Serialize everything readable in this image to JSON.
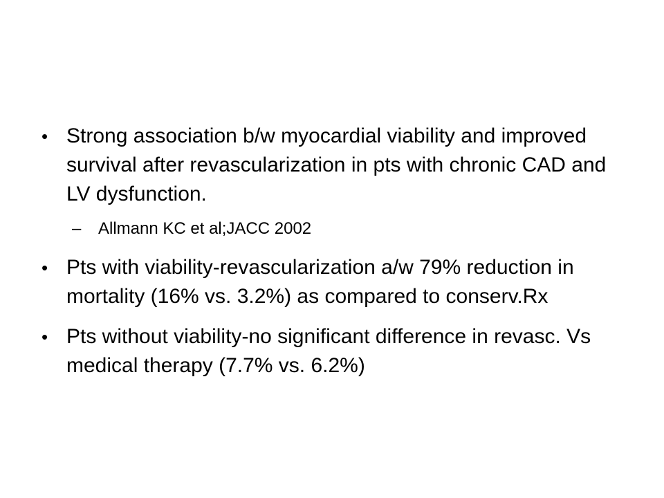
{
  "bullets": [
    {
      "marker": "•",
      "text": "Strong association b/w myocardial viability and improved survival after revascularization in pts with chronic CAD and LV dysfunction.",
      "sub": {
        "marker": "–",
        "text": "Allmann KC et al;JACC 2002"
      }
    },
    {
      "marker": "•",
      "text": "Pts with viability-revascularization a/w  79% reduction in mortality (16% vs. 3.2%) as compared to conserv.Rx"
    },
    {
      "marker": "•",
      "text": "Pts without viability-no significant difference in revasc. Vs medical therapy (7.7% vs. 6.2%)"
    }
  ]
}
